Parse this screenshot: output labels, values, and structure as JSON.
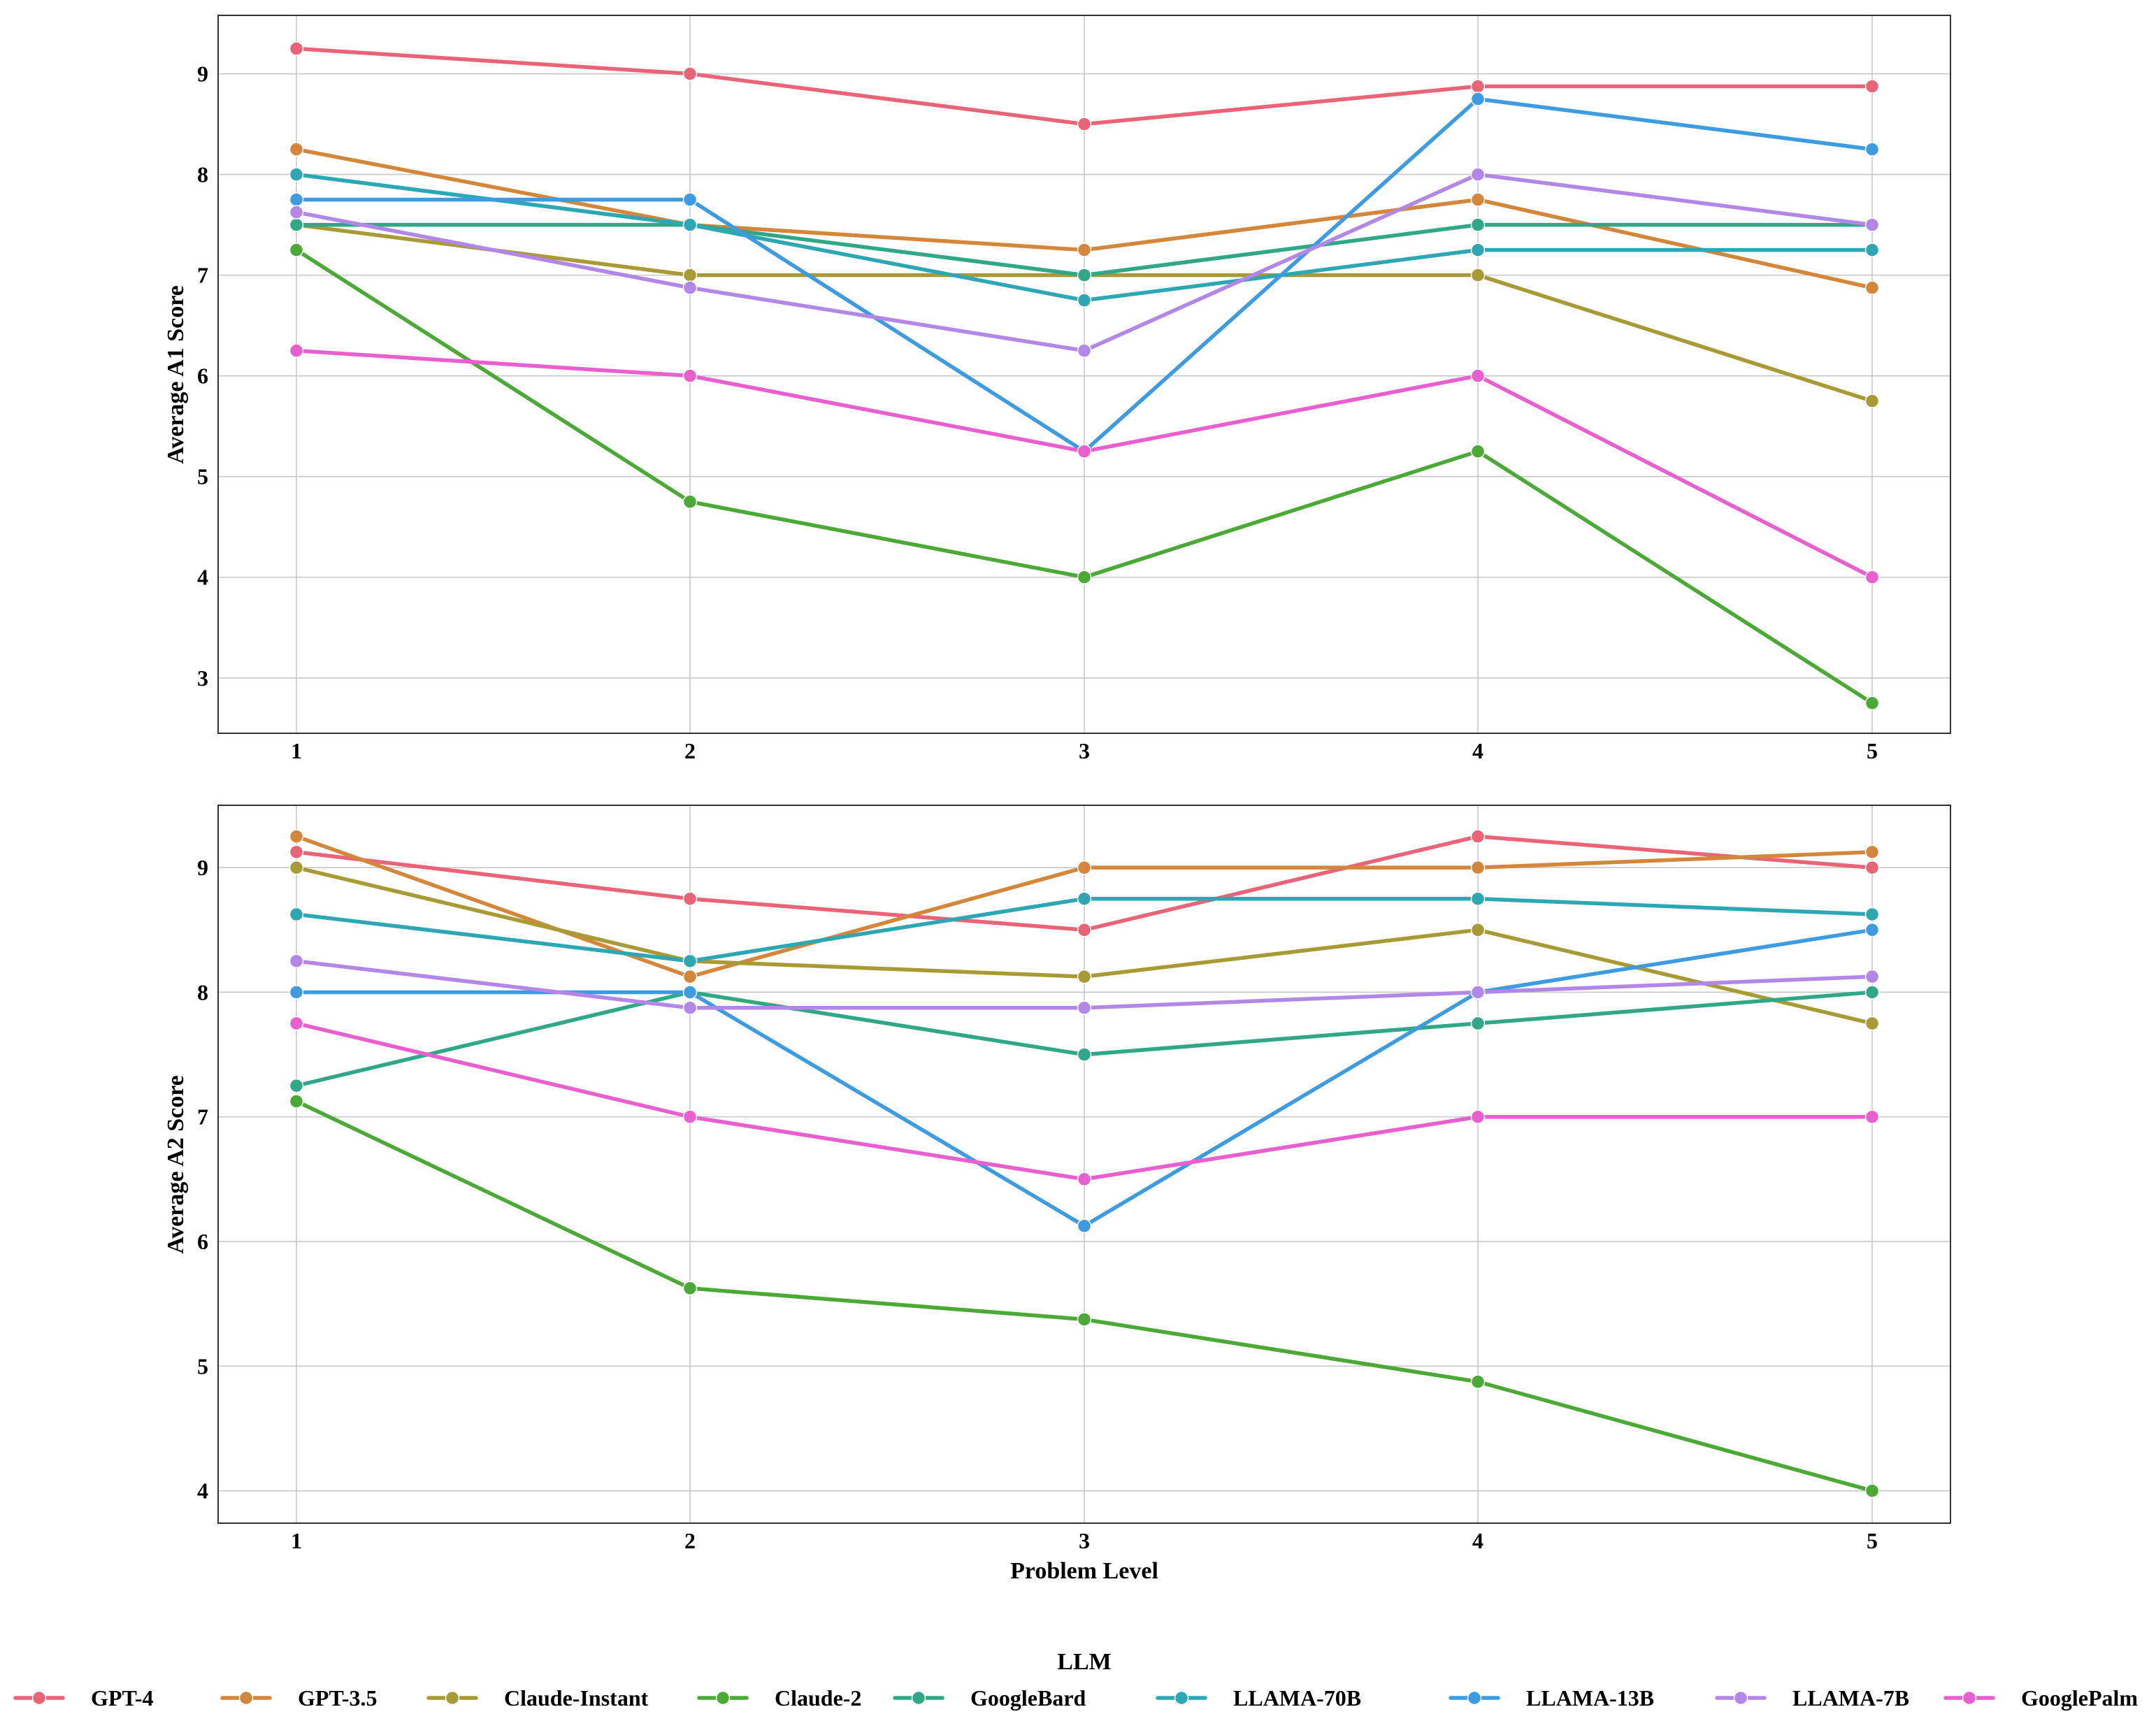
{
  "chart_data": [
    {
      "type": "line",
      "title": "",
      "xlabel": "",
      "ylabel": "Average A1 Score",
      "x": [
        1,
        2,
        3,
        4,
        5
      ],
      "xticks": [
        "1",
        "2",
        "3",
        "4",
        "5"
      ],
      "yticks": [
        "3",
        "4",
        "5",
        "6",
        "7",
        "8",
        "9"
      ],
      "ylim": [
        2.45,
        9.58
      ],
      "grid": true,
      "series": [
        {
          "name": "GPT-4",
          "values": [
            9.25,
            9.0,
            8.5,
            8.875,
            8.875
          ]
        },
        {
          "name": "GPT-3.5",
          "values": [
            8.25,
            7.5,
            7.25,
            7.75,
            6.875
          ]
        },
        {
          "name": "Claude-Instant",
          "values": [
            7.5,
            7.0,
            7.0,
            7.0,
            5.75
          ]
        },
        {
          "name": "Claude-2",
          "values": [
            7.25,
            4.75,
            4.0,
            5.25,
            2.75
          ]
        },
        {
          "name": "GoogleBard",
          "values": [
            7.5,
            7.5,
            7.0,
            7.5,
            7.5
          ]
        },
        {
          "name": "LLAMA-70B",
          "values": [
            8.0,
            7.5,
            6.75,
            7.25,
            7.25
          ]
        },
        {
          "name": "LLAMA-13B",
          "values": [
            7.75,
            7.75,
            5.25,
            8.75,
            8.25
          ]
        },
        {
          "name": "LLAMA-7B",
          "values": [
            7.625,
            6.875,
            6.25,
            8.0,
            7.5
          ]
        },
        {
          "name": "GooglePalm",
          "values": [
            6.25,
            6.0,
            5.25,
            6.0,
            4.0
          ]
        }
      ]
    },
    {
      "type": "line",
      "title": "",
      "xlabel": "Problem Level",
      "ylabel": "Average A2 Score",
      "x": [
        1,
        2,
        3,
        4,
        5
      ],
      "xticks": [
        "1",
        "2",
        "3",
        "4",
        "5"
      ],
      "yticks": [
        "4",
        "5",
        "6",
        "7",
        "8",
        "9"
      ],
      "ylim": [
        3.74,
        9.5
      ],
      "grid": true,
      "series": [
        {
          "name": "GPT-4",
          "values": [
            9.125,
            8.75,
            8.5,
            9.25,
            9.0
          ]
        },
        {
          "name": "GPT-3.5",
          "values": [
            9.25,
            8.125,
            9.0,
            9.0,
            9.125
          ]
        },
        {
          "name": "Claude-Instant",
          "values": [
            9.0,
            8.25,
            8.125,
            8.5,
            7.75
          ]
        },
        {
          "name": "Claude-2",
          "values": [
            7.125,
            5.625,
            5.375,
            4.875,
            4.0
          ]
        },
        {
          "name": "GoogleBard",
          "values": [
            7.25,
            8.0,
            7.5,
            7.75,
            8.0
          ]
        },
        {
          "name": "LLAMA-70B",
          "values": [
            8.625,
            8.25,
            8.75,
            8.75,
            8.625
          ]
        },
        {
          "name": "LLAMA-13B",
          "values": [
            8.0,
            8.0,
            6.125,
            8.0,
            8.5
          ]
        },
        {
          "name": "LLAMA-7B",
          "values": [
            8.25,
            7.875,
            7.875,
            8.0,
            8.125
          ]
        },
        {
          "name": "GooglePalm",
          "values": [
            7.75,
            7.0,
            6.5,
            7.0,
            7.0
          ]
        }
      ]
    }
  ],
  "legend": {
    "title": "LLM",
    "placement": "bottom",
    "entries": [
      "GPT-4",
      "GPT-3.5",
      "Claude-Instant",
      "Claude-2",
      "GoogleBard",
      "LLAMA-70B",
      "LLAMA-13B",
      "LLAMA-7B",
      "GooglePalm"
    ]
  },
  "colors": {
    "GPT-4": "#ea6478",
    "GPT-3.5": "#d4873a",
    "Claude-Instant": "#a89a34",
    "Claude-2": "#4aaa35",
    "GoogleBard": "#30a888",
    "LLAMA-70B": "#2ea7b4",
    "LLAMA-13B": "#3d9be2",
    "LLAMA-7B": "#b387e8",
    "GooglePalm": "#ea5fcf"
  }
}
